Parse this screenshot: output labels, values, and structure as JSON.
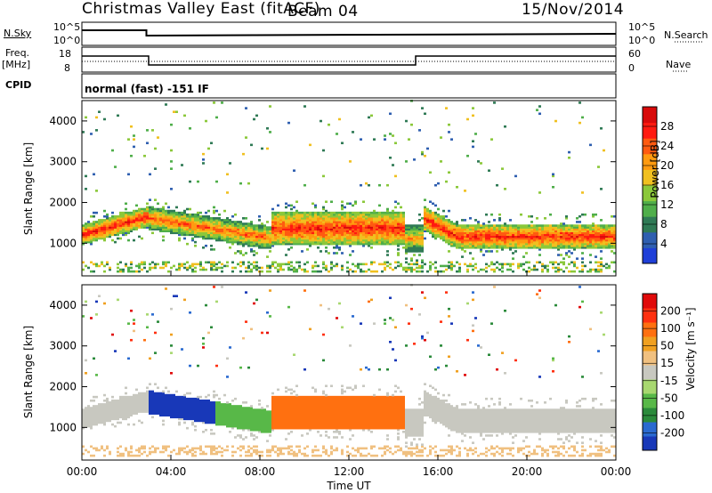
{
  "header": {
    "title": "Christmas Valley East (fitACF)",
    "beam": "Beam 04",
    "date": "15/Nov/2014"
  },
  "strips": {
    "nsky": {
      "label": "N.Sky",
      "tick_top": "10^5",
      "tick_bottom": "10^0",
      "right_tick_top": "10^5",
      "right_tick_bottom": "10^0",
      "right_label": "N.Search"
    },
    "freq": {
      "label_line1": "Freq.",
      "label_line2": "[MHz]",
      "tick_top": "18",
      "tick_bottom": "8",
      "right_tick_top": "60",
      "right_tick_bottom": "0",
      "right_label": "Nave"
    },
    "cpid": {
      "label": "CPID",
      "text": "normal (fast) -151 IF"
    }
  },
  "chart_data": [
    {
      "type": "heatmap",
      "name": "power",
      "ylabel": "Slant Range [km]",
      "yticks": [
        "1000",
        "2000",
        "3000",
        "4000"
      ],
      "ylim": [
        200,
        4500
      ],
      "xlim_hours": [
        0,
        24
      ],
      "colorbar": {
        "label": "Power [dB]",
        "ticks": [
          "4",
          "8",
          "12",
          "16",
          "20",
          "24",
          "28"
        ],
        "range": [
          0,
          32
        ],
        "colors": [
          "#1f3fd8",
          "#2f5fb0",
          "#2f7a55",
          "#4fae4a",
          "#8bc83a",
          "#f0c020",
          "#ff9a10",
          "#ff5a10",
          "#ff1a10",
          "#d80a0a"
        ]
      }
    },
    {
      "type": "heatmap",
      "name": "velocity",
      "ylabel": "Slant Range [km]",
      "yticks": [
        "1000",
        "2000",
        "3000",
        "4000"
      ],
      "ylim": [
        200,
        4500
      ],
      "xlim_hours": [
        0,
        24
      ],
      "colorbar": {
        "label": "Velocity [m s⁻¹]",
        "ticks": [
          "200",
          "100",
          "50",
          "15",
          "-15",
          "-50",
          "-100",
          "-200"
        ],
        "colors": [
          "#1838b8",
          "#2a6ad0",
          "#2a8a3a",
          "#58b848",
          "#a8d870",
          "#c8c8c0",
          "#f0c080",
          "#f0a020",
          "#ff7010",
          "#ff3010",
          "#e00a0a"
        ]
      }
    }
  ],
  "xaxis": {
    "ticks": [
      "00:00",
      "04:00",
      "08:00",
      "12:00",
      "16:00",
      "20:00",
      "00:00"
    ],
    "label": "Time UT"
  }
}
